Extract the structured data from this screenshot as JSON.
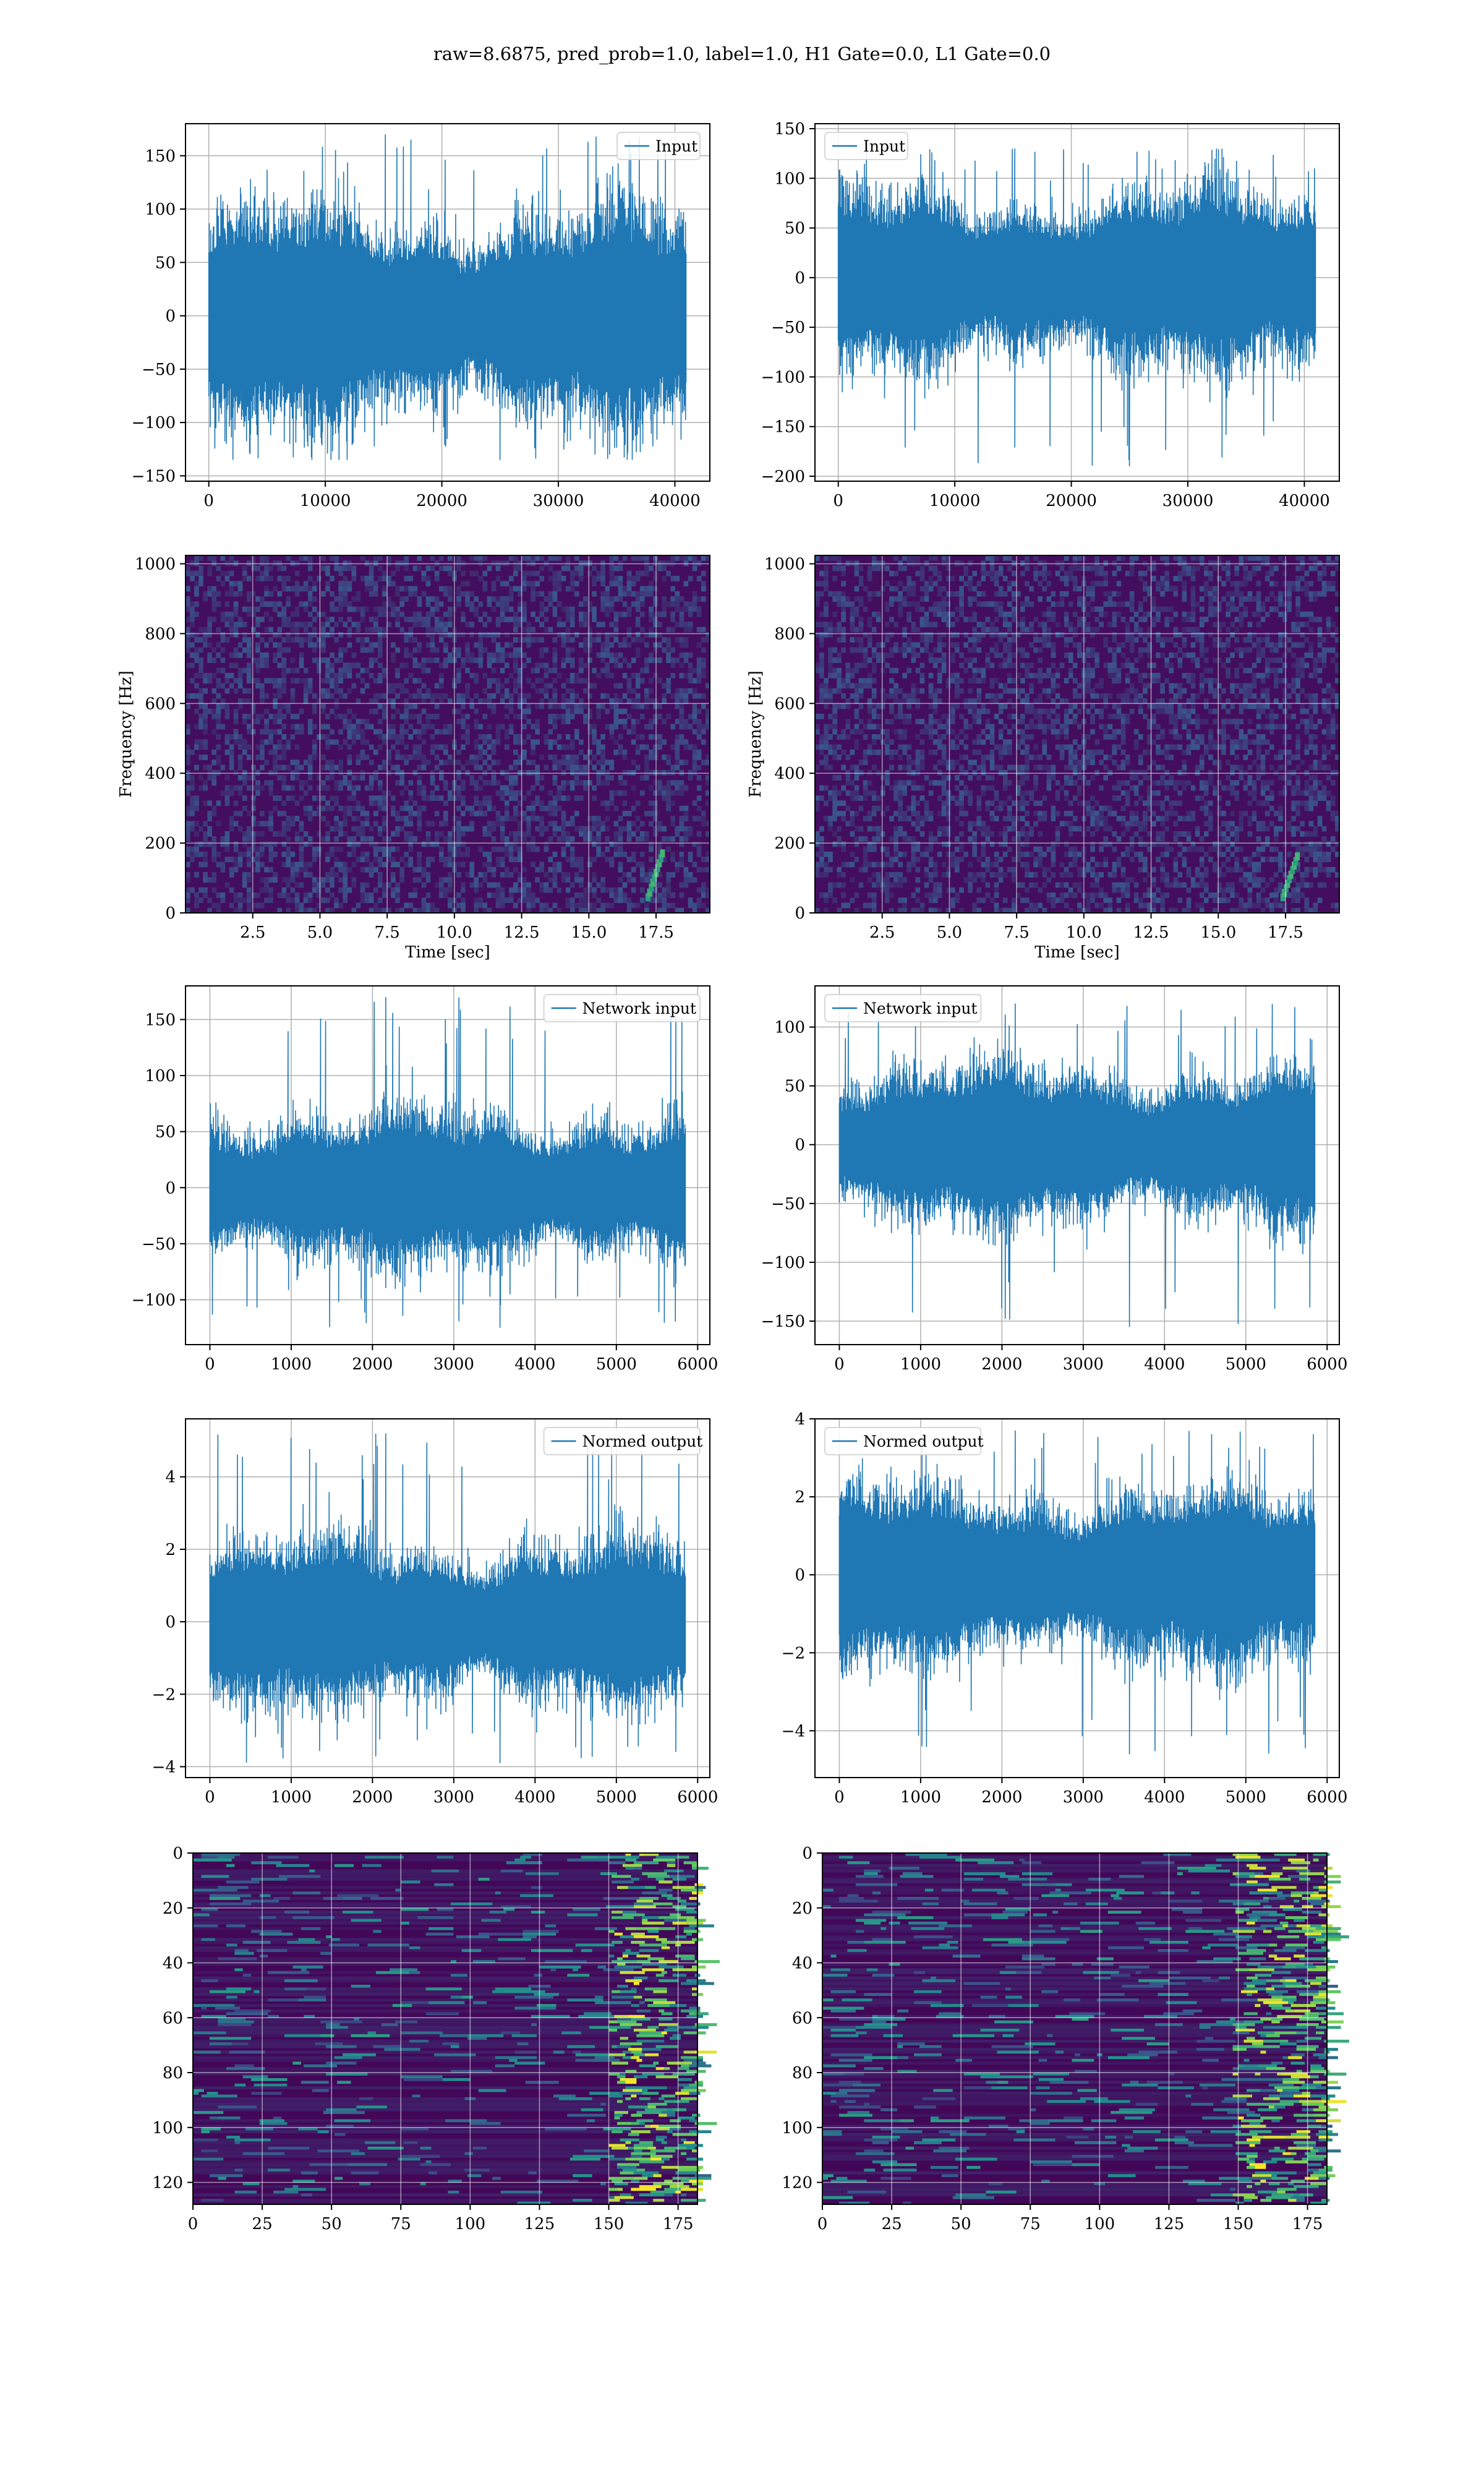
{
  "figure": {
    "title": "raw=8.6875, pred_prob=1.0, label=1.0, H1 Gate=0.0, L1 Gate=0.0",
    "line_color": "#1f77b4"
  },
  "chart_data": [
    {
      "id": "input-h1",
      "type": "line",
      "series": [
        {
          "name": "Input",
          "length": 40960,
          "amplitude_typical": 45,
          "envelope": [
            -135,
            170
          ]
        }
      ],
      "xlim": [
        -2000,
        43000
      ],
      "ylim": [
        -155,
        180
      ],
      "xticks": [
        0,
        10000,
        20000,
        30000,
        40000
      ],
      "yticks": [
        -150,
        -100,
        -50,
        0,
        50,
        100,
        150
      ],
      "legend": "top-right",
      "grid": true,
      "xlabel": "",
      "ylabel": ""
    },
    {
      "id": "input-l1",
      "type": "line",
      "series": [
        {
          "name": "Input",
          "length": 40960,
          "amplitude_typical": 40,
          "envelope": [
            -190,
            130
          ]
        }
      ],
      "xlim": [
        -2000,
        43000
      ],
      "ylim": [
        -205,
        155
      ],
      "xticks": [
        0,
        10000,
        20000,
        30000,
        40000
      ],
      "yticks": [
        -200,
        -150,
        -100,
        -50,
        0,
        50,
        100,
        150
      ],
      "legend": "top-left",
      "grid": true,
      "xlabel": "",
      "ylabel": ""
    },
    {
      "id": "spectrogram-h1",
      "type": "heatmap",
      "colormap": "viridis",
      "xlim": [
        0,
        19.5
      ],
      "ylim": [
        0,
        1024
      ],
      "xticks": [
        2.5,
        5.0,
        7.5,
        10.0,
        12.5,
        15.0,
        17.5
      ],
      "yticks": [
        0,
        200,
        400,
        600,
        800,
        1000
      ],
      "xlabel": "Time [sec]",
      "ylabel": "Frequency [Hz]",
      "grid": true,
      "chirp": {
        "t_start": 17.2,
        "t_end": 17.8,
        "f_start": 40,
        "f_end": 180
      }
    },
    {
      "id": "spectrogram-l1",
      "type": "heatmap",
      "colormap": "viridis",
      "xlim": [
        0,
        19.5
      ],
      "ylim": [
        0,
        1024
      ],
      "xticks": [
        2.5,
        5.0,
        7.5,
        10.0,
        12.5,
        15.0,
        17.5
      ],
      "yticks": [
        0,
        200,
        400,
        600,
        800,
        1000
      ],
      "xlabel": "Time [sec]",
      "ylabel": "Frequency [Hz]",
      "grid": true,
      "chirp": {
        "t_start": 17.4,
        "t_end": 18.0,
        "f_start": 40,
        "f_end": 170
      }
    },
    {
      "id": "network-input-h1",
      "type": "line",
      "series": [
        {
          "name": "Network input",
          "length": 5850,
          "amplitude_typical": 30,
          "envelope": [
            -125,
            170
          ]
        }
      ],
      "xlim": [
        -300,
        6150
      ],
      "ylim": [
        -140,
        180
      ],
      "xticks": [
        0,
        1000,
        2000,
        3000,
        4000,
        5000,
        6000
      ],
      "yticks": [
        -100,
        -50,
        0,
        50,
        100,
        150
      ],
      "legend": "top-right",
      "grid": true,
      "xlabel": "",
      "ylabel": ""
    },
    {
      "id": "network-input-l1",
      "type": "line",
      "series": [
        {
          "name": "Network input",
          "length": 5850,
          "amplitude_typical": 30,
          "envelope": [
            -155,
            120
          ]
        }
      ],
      "xlim": [
        -300,
        6150
      ],
      "ylim": [
        -170,
        135
      ],
      "xticks": [
        0,
        1000,
        2000,
        3000,
        4000,
        5000,
        6000
      ],
      "yticks": [
        -150,
        -100,
        -50,
        0,
        50,
        100
      ],
      "legend": "top-left",
      "grid": true,
      "xlabel": "",
      "ylabel": ""
    },
    {
      "id": "normed-output-h1",
      "type": "line",
      "series": [
        {
          "name": "Normed output",
          "length": 5850,
          "amplitude_typical": 1.0,
          "envelope": [
            -3.9,
            5.2
          ]
        }
      ],
      "xlim": [
        -300,
        6150
      ],
      "ylim": [
        -4.3,
        5.6
      ],
      "xticks": [
        0,
        1000,
        2000,
        3000,
        4000,
        5000,
        6000
      ],
      "yticks": [
        -4,
        -2,
        0,
        2,
        4
      ],
      "legend": "top-right",
      "grid": true,
      "xlabel": "",
      "ylabel": ""
    },
    {
      "id": "normed-output-l1",
      "type": "line",
      "series": [
        {
          "name": "Normed output",
          "length": 5850,
          "amplitude_typical": 1.0,
          "envelope": [
            -4.6,
            3.7
          ]
        }
      ],
      "xlim": [
        -300,
        6150
      ],
      "ylim": [
        -5.2,
        4.0
      ],
      "xticks": [
        0,
        1000,
        2000,
        3000,
        4000,
        5000,
        6000
      ],
      "yticks": [
        -4,
        -2,
        0,
        2,
        4
      ],
      "legend": "top-left",
      "grid": true,
      "xlabel": "",
      "ylabel": ""
    },
    {
      "id": "feature-map-h1",
      "type": "heatmap",
      "colormap": "viridis",
      "rows": 128,
      "cols": 182,
      "xlim": [
        0,
        182
      ],
      "ylim": [
        128,
        0
      ],
      "xticks": [
        0,
        25,
        50,
        75,
        100,
        125,
        150,
        175
      ],
      "yticks": [
        0,
        20,
        40,
        60,
        80,
        100,
        120
      ],
      "grid": true,
      "xlabel": "",
      "ylabel": "",
      "hot_region_cols": [
        150,
        182
      ]
    },
    {
      "id": "feature-map-l1",
      "type": "heatmap",
      "colormap": "viridis",
      "rows": 128,
      "cols": 182,
      "xlim": [
        0,
        182
      ],
      "ylim": [
        128,
        0
      ],
      "xticks": [
        0,
        25,
        50,
        75,
        100,
        125,
        150,
        175
      ],
      "yticks": [
        0,
        20,
        40,
        60,
        80,
        100,
        120
      ],
      "grid": true,
      "xlabel": "",
      "ylabel": "",
      "hot_region_cols": [
        148,
        182
      ]
    }
  ]
}
